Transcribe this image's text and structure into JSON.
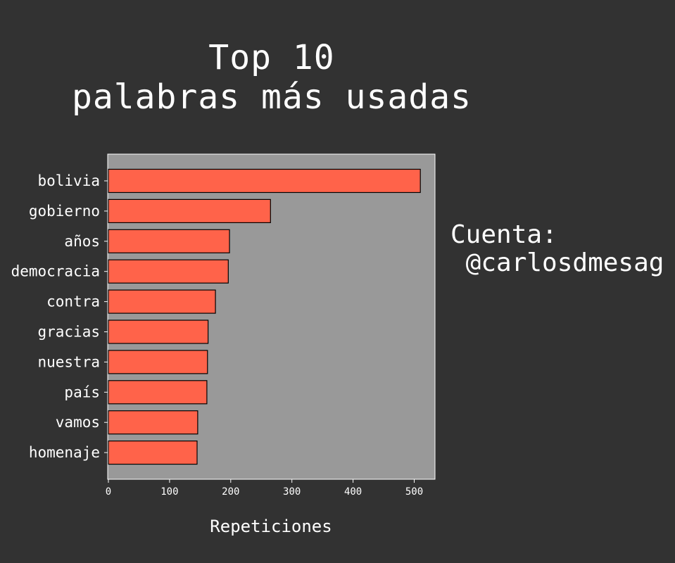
{
  "title_lines": [
    "Top 10",
    "palabras más usadas"
  ],
  "side_note": {
    "line1": "Cuenta:",
    "line2": " @carlosdmesag"
  },
  "colors": {
    "background": "#323232",
    "plot_area": "#999999",
    "bar_fill": "#ff634a",
    "bar_edge": "#000000",
    "text": "#ffffff"
  },
  "chart_data": {
    "type": "bar",
    "orientation": "horizontal",
    "categories": [
      "bolivia",
      "gobierno",
      "años",
      "democracia",
      "contra",
      "gracias",
      "nuestra",
      "país",
      "vamos",
      "homenaje"
    ],
    "values": [
      510,
      265,
      198,
      196,
      175,
      163,
      162,
      161,
      146,
      145
    ],
    "xlabel": "Repeticiones",
    "ylabel": "",
    "xlim": [
      0,
      535
    ],
    "xticks": [
      0,
      100,
      200,
      300,
      400,
      500
    ],
    "grid": false,
    "legend": "none"
  }
}
